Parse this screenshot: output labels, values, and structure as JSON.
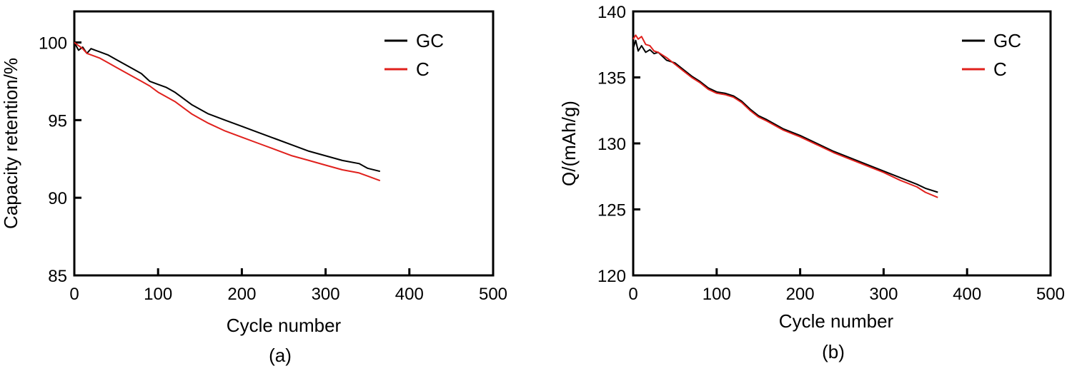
{
  "colors": {
    "GC": "#000000",
    "C": "#e0201c",
    "axis": "#000000"
  },
  "chart_data": [
    {
      "type": "line",
      "panel_label": "(a)",
      "xlabel": "Cycle number",
      "ylabel": "Capacity retention/%",
      "xlim": [
        0,
        500
      ],
      "ylim": [
        85,
        102
      ],
      "xticks": [
        0,
        100,
        200,
        300,
        400,
        500
      ],
      "yticks": [
        85,
        90,
        95,
        100
      ],
      "grid": false,
      "legend_position": "top-right",
      "series": [
        {
          "name": "GC",
          "color_key": "GC",
          "x": [
            0,
            5,
            10,
            15,
            20,
            25,
            30,
            40,
            50,
            60,
            70,
            80,
            90,
            100,
            110,
            120,
            130,
            140,
            150,
            160,
            180,
            200,
            220,
            240,
            260,
            280,
            300,
            320,
            340,
            350,
            365
          ],
          "y": [
            100,
            99.5,
            99.7,
            99.3,
            99.6,
            99.5,
            99.4,
            99.2,
            98.9,
            98.6,
            98.3,
            98.0,
            97.5,
            97.3,
            97.1,
            96.8,
            96.4,
            96.0,
            95.7,
            95.4,
            95.0,
            94.6,
            94.2,
            93.8,
            93.4,
            93.0,
            92.7,
            92.4,
            92.2,
            91.9,
            91.7
          ]
        },
        {
          "name": "C",
          "color_key": "C",
          "x": [
            0,
            5,
            10,
            15,
            20,
            30,
            40,
            50,
            60,
            70,
            80,
            90,
            100,
            110,
            120,
            130,
            140,
            150,
            160,
            180,
            200,
            220,
            240,
            260,
            280,
            300,
            320,
            340,
            350,
            365
          ],
          "y": [
            100,
            99.8,
            99.6,
            99.3,
            99.2,
            99.0,
            98.7,
            98.4,
            98.1,
            97.8,
            97.5,
            97.2,
            96.8,
            96.5,
            96.2,
            95.8,
            95.4,
            95.1,
            94.8,
            94.3,
            93.9,
            93.5,
            93.1,
            92.7,
            92.4,
            92.1,
            91.8,
            91.6,
            91.4,
            91.1
          ]
        }
      ]
    },
    {
      "type": "line",
      "panel_label": "(b)",
      "xlabel": "Cycle number",
      "ylabel": "Q/(mAh/g)",
      "xlim": [
        0,
        500
      ],
      "ylim": [
        120,
        140
      ],
      "xticks": [
        0,
        100,
        200,
        300,
        400,
        500
      ],
      "yticks": [
        120,
        125,
        130,
        135,
        140
      ],
      "grid": false,
      "legend_position": "top-right",
      "series": [
        {
          "name": "GC",
          "color_key": "GC",
          "x": [
            0,
            3,
            6,
            10,
            15,
            20,
            25,
            30,
            40,
            50,
            60,
            70,
            80,
            90,
            100,
            110,
            120,
            130,
            140,
            150,
            160,
            180,
            200,
            220,
            240,
            260,
            280,
            300,
            320,
            340,
            350,
            365
          ],
          "y": [
            137.2,
            137.8,
            137.0,
            137.4,
            136.9,
            137.1,
            136.8,
            136.9,
            136.3,
            136.1,
            135.6,
            135.1,
            134.7,
            134.2,
            133.9,
            133.8,
            133.6,
            133.2,
            132.6,
            132.1,
            131.8,
            131.1,
            130.6,
            130.0,
            129.4,
            128.9,
            128.4,
            127.9,
            127.4,
            126.9,
            126.6,
            126.3
          ]
        },
        {
          "name": "C",
          "color_key": "C",
          "x": [
            0,
            3,
            6,
            10,
            15,
            20,
            25,
            30,
            40,
            50,
            60,
            70,
            80,
            90,
            100,
            110,
            120,
            130,
            140,
            150,
            160,
            180,
            200,
            220,
            240,
            260,
            280,
            300,
            320,
            340,
            350,
            365
          ],
          "y": [
            137.9,
            138.2,
            137.9,
            138.1,
            137.5,
            137.4,
            137.0,
            136.9,
            136.5,
            136.0,
            135.5,
            135.0,
            134.6,
            134.1,
            133.8,
            133.7,
            133.5,
            133.1,
            132.5,
            132.0,
            131.7,
            131.0,
            130.5,
            129.9,
            129.3,
            128.8,
            128.3,
            127.8,
            127.2,
            126.7,
            126.3,
            125.9
          ]
        }
      ]
    }
  ]
}
